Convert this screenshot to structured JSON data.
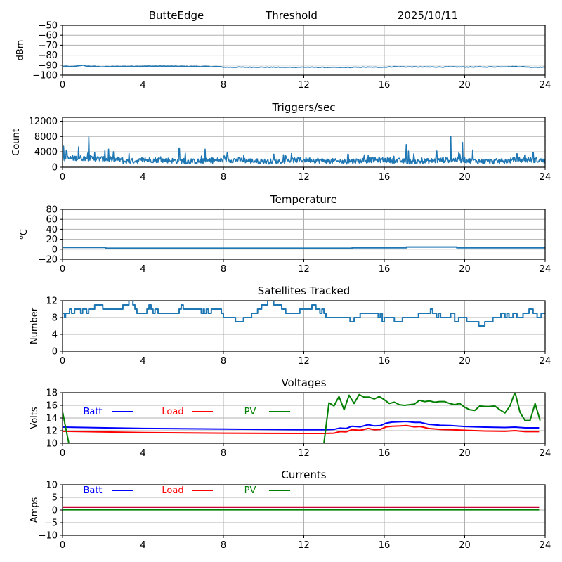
{
  "figure": {
    "header": {
      "station": "ButteEdge",
      "panel": "Threshold",
      "date": "2025/10/11"
    }
  },
  "chart_data": [
    {
      "id": "threshold",
      "type": "line",
      "title": "",
      "ylabel": "dBm",
      "xlabel": "",
      "xlim": [
        0,
        24
      ],
      "ylim": [
        -100,
        -50
      ],
      "xticks": [
        "0",
        "4",
        "8",
        "12",
        "16",
        "20",
        "24"
      ],
      "yticks": [
        "-50",
        "-60",
        "-70",
        "-80",
        "-90",
        "-100"
      ],
      "ytick_values": [
        -50,
        -60,
        -70,
        -80,
        -90,
        -100
      ],
      "grid": true,
      "series": [
        {
          "name": "Threshold",
          "color": "#1f77b4",
          "x": [
            0,
            0.5,
            1.0,
            1.1,
            1.5,
            2,
            3,
            4,
            5,
            6,
            7,
            7.8,
            8,
            9,
            10,
            11,
            12,
            13,
            14,
            15,
            16,
            16.5,
            17,
            18,
            19,
            20,
            21,
            22,
            22.5,
            23,
            23.3,
            24
          ],
          "y": [
            -91,
            -91.5,
            -90,
            -90.8,
            -91.2,
            -91.5,
            -91.2,
            -91,
            -91,
            -91.2,
            -91.3,
            -91.5,
            -92,
            -92,
            -92,
            -92.2,
            -92,
            -92.2,
            -92.3,
            -92,
            -92,
            -91.5,
            -91.7,
            -91.8,
            -91.8,
            -91.8,
            -91.8,
            -91.5,
            -91.4,
            -91.6,
            -92,
            -92
          ]
        }
      ]
    },
    {
      "id": "triggers",
      "type": "line",
      "title": "Triggers/sec",
      "ylabel": "Count",
      "xlabel": "",
      "xlim": [
        0,
        24
      ],
      "ylim": [
        0,
        13000
      ],
      "xticks": [
        "0",
        "4",
        "8",
        "12",
        "16",
        "20",
        "24"
      ],
      "yticks": [
        "0",
        "4000",
        "8000",
        "12000"
      ],
      "ytick_values": [
        0,
        4000,
        8000,
        12000
      ],
      "grid": true,
      "series": [
        {
          "name": "Triggers",
          "color": "#1f77b4",
          "baseline": 1700,
          "noise": 700,
          "spikes": [
            {
              "x": 0.05,
              "y": 5500
            },
            {
              "x": 0.2,
              "y": 4300
            },
            {
              "x": 0.8,
              "y": 5300
            },
            {
              "x": 1.3,
              "y": 7900
            },
            {
              "x": 1.6,
              "y": 3800
            },
            {
              "x": 2.1,
              "y": 4300
            },
            {
              "x": 2.3,
              "y": 4700
            },
            {
              "x": 3.3,
              "y": 3600
            },
            {
              "x": 5.8,
              "y": 5000
            },
            {
              "x": 6.1,
              "y": 3600
            },
            {
              "x": 7.1,
              "y": 4700
            },
            {
              "x": 8.2,
              "y": 3700
            },
            {
              "x": 10.5,
              "y": 3400
            },
            {
              "x": 14.2,
              "y": 3400
            },
            {
              "x": 15.2,
              "y": 3100
            },
            {
              "x": 17.1,
              "y": 5900
            },
            {
              "x": 17.2,
              "y": 4200
            },
            {
              "x": 18.6,
              "y": 4200
            },
            {
              "x": 19.3,
              "y": 8100
            },
            {
              "x": 19.7,
              "y": 3900
            },
            {
              "x": 19.9,
              "y": 6500
            },
            {
              "x": 20.4,
              "y": 4500
            },
            {
              "x": 22.6,
              "y": 3500
            },
            {
              "x": 23.0,
              "y": 3200
            },
            {
              "x": 23.4,
              "y": 3800
            }
          ]
        }
      ]
    },
    {
      "id": "temperature",
      "type": "line",
      "title": "Temperature",
      "ylabel": "°C",
      "xlabel": "",
      "xlim": [
        0,
        24
      ],
      "ylim": [
        -20,
        80
      ],
      "xticks": [
        "0",
        "4",
        "8",
        "12",
        "16",
        "20",
        "24"
      ],
      "yticks": [
        "-20",
        "0",
        "20",
        "40",
        "60",
        "80"
      ],
      "ytick_values": [
        -20,
        0,
        20,
        40,
        60,
        80
      ],
      "grid": true,
      "series": [
        {
          "name": "Temperature",
          "color": "#1f77b4",
          "step": true,
          "x": [
            0,
            2.15,
            2.15,
            14.4,
            14.4,
            17.1,
            17.1,
            19.6,
            19.6,
            24
          ],
          "y": [
            3.5,
            3.5,
            2,
            2,
            3,
            3,
            4.5,
            4.5,
            3,
            3
          ]
        }
      ]
    },
    {
      "id": "satellites",
      "type": "line",
      "title": "Satellites Tracked",
      "ylabel": "Number",
      "xlabel": "",
      "xlim": [
        0,
        24
      ],
      "ylim": [
        0,
        12
      ],
      "xticks": [
        "0",
        "4",
        "8",
        "12",
        "16",
        "20",
        "24"
      ],
      "yticks": [
        "0",
        "4",
        "8",
        "12"
      ],
      "ytick_values": [
        0,
        4,
        8,
        12
      ],
      "grid": true,
      "series": [
        {
          "name": "Satellites",
          "color": "#1f77b4",
          "step": true,
          "x": [
            0,
            0.1,
            0.15,
            0.3,
            0.35,
            0.45,
            0.6,
            0.9,
            1.0,
            1.2,
            1.3,
            1.45,
            1.6,
            1.8,
            2.0,
            2.3,
            3.0,
            3.3,
            3.4,
            3.5,
            3.6,
            3.7,
            4.0,
            4.2,
            4.3,
            4.4,
            4.5,
            4.6,
            4.75,
            5.0,
            5.8,
            5.9,
            6.0,
            6.1,
            6.3,
            6.9,
            7.0,
            7.05,
            7.15,
            7.25,
            7.4,
            7.9,
            8.0,
            8.6,
            9.0,
            9.4,
            9.7,
            9.9,
            10.2,
            10.5,
            10.9,
            11.1,
            11.6,
            11.8,
            12.2,
            12.4,
            12.6,
            12.8,
            12.9,
            13.0,
            13.1,
            13.2,
            13.3,
            14.3,
            14.5,
            14.8,
            15.4,
            15.7,
            15.8,
            15.9,
            16.0,
            16.1,
            16.5,
            16.9,
            17.3,
            17.7,
            18.3,
            18.4,
            18.5,
            18.6,
            18.7,
            18.8,
            19.0,
            19.3,
            19.5,
            19.6,
            19.7,
            20.1,
            20.4,
            20.7,
            21.0,
            21.4,
            21.8,
            22.0,
            22.05,
            22.1,
            22.2,
            22.4,
            22.6,
            22.9,
            23.2,
            23.4,
            23.6,
            23.8,
            24
          ],
          "y": [
            9,
            8,
            9,
            9,
            10,
            9,
            10,
            9,
            10,
            9,
            10,
            10,
            11,
            11,
            10,
            10,
            11,
            12,
            12,
            11,
            10,
            9,
            9,
            10,
            11,
            10,
            9,
            10,
            9,
            9,
            10,
            11,
            10,
            10,
            10,
            9,
            10,
            9,
            10,
            9,
            10,
            9,
            8,
            7,
            8,
            9,
            10,
            11,
            12,
            11,
            10,
            9,
            9,
            10,
            10,
            11,
            10,
            9,
            10,
            9,
            8,
            8,
            8,
            7,
            8,
            9,
            9,
            8,
            9,
            7,
            8,
            8,
            7,
            8,
            8,
            9,
            10,
            9,
            9,
            8,
            9,
            8,
            8,
            9,
            7,
            7,
            8,
            7,
            7,
            6,
            7,
            8,
            9,
            8,
            8,
            9,
            8,
            9,
            8,
            9,
            10,
            9,
            8,
            9,
            9
          ]
        }
      ]
    },
    {
      "id": "voltages",
      "type": "line",
      "title": "Voltages",
      "ylabel": "Volts",
      "xlabel": "",
      "xlim": [
        0,
        24
      ],
      "ylim": [
        10,
        18
      ],
      "xticks": [
        "0",
        "4",
        "8",
        "12",
        "16",
        "20",
        "24"
      ],
      "yticks": [
        "10",
        "12",
        "14",
        "16",
        "18"
      ],
      "ytick_values": [
        10,
        12,
        14,
        16,
        18
      ],
      "grid": true,
      "legend": [
        "Batt",
        "Load",
        "PV"
      ],
      "series": [
        {
          "name": "Batt",
          "color": "#0000ff",
          "x": [
            0,
            4,
            8,
            12,
            13,
            13.5,
            13.8,
            14.1,
            14.4,
            14.8,
            15.2,
            15.5,
            15.8,
            16.1,
            16.4,
            16.8,
            17.1,
            17.5,
            17.8,
            18.2,
            18.8,
            19.3,
            20,
            21,
            22,
            22.5,
            23,
            23.7
          ],
          "y": [
            12.55,
            12.35,
            12.25,
            12.15,
            12.15,
            12.2,
            12.4,
            12.35,
            12.7,
            12.6,
            12.95,
            12.75,
            12.8,
            13.2,
            13.35,
            13.4,
            13.45,
            13.3,
            13.3,
            13.0,
            12.85,
            12.8,
            12.65,
            12.55,
            12.5,
            12.55,
            12.45,
            12.45
          ]
        },
        {
          "name": "Load",
          "color": "#ff0000",
          "x": [
            0,
            4,
            8,
            12,
            13,
            13.5,
            13.8,
            14.1,
            14.4,
            14.8,
            15.2,
            15.5,
            15.8,
            16.1,
            16.4,
            16.8,
            17.1,
            17.5,
            17.8,
            18.2,
            18.8,
            19.3,
            20,
            21,
            22,
            22.5,
            23,
            23.7
          ],
          "y": [
            11.9,
            11.7,
            11.6,
            11.55,
            11.55,
            11.6,
            11.85,
            11.8,
            12.15,
            12.05,
            12.35,
            12.15,
            12.2,
            12.6,
            12.7,
            12.75,
            12.8,
            12.6,
            12.65,
            12.35,
            12.2,
            12.15,
            12.05,
            11.95,
            11.9,
            12.0,
            11.85,
            11.85
          ]
        },
        {
          "name": "PV",
          "color": "#008000",
          "x": [
            0,
            0.3,
            0.35,
            12.95,
            13.0,
            13.25,
            13.5,
            13.75,
            14.0,
            14.25,
            14.5,
            14.75,
            15.0,
            15.25,
            15.5,
            15.75,
            16.0,
            16.25,
            16.5,
            16.75,
            17.0,
            17.25,
            17.5,
            17.75,
            18.0,
            18.25,
            18.5,
            18.75,
            19.0,
            19.25,
            19.5,
            19.75,
            20.0,
            20.25,
            20.5,
            20.75,
            21.0,
            21.25,
            21.5,
            21.75,
            22.0,
            22.25,
            22.5,
            22.75,
            23.0,
            23.25,
            23.5,
            23.75
          ],
          "y": [
            15.0,
            10.2,
            9.5,
            9.5,
            10.0,
            16.4,
            15.9,
            17.4,
            15.3,
            17.6,
            16.3,
            17.7,
            17.3,
            17.3,
            17.0,
            17.4,
            16.9,
            16.3,
            16.5,
            16.1,
            16.0,
            16.1,
            16.2,
            16.8,
            16.6,
            16.7,
            16.5,
            16.6,
            16.6,
            16.3,
            16.1,
            16.3,
            15.7,
            15.3,
            15.2,
            15.9,
            15.8,
            15.8,
            15.9,
            15.3,
            14.8,
            15.9,
            18.1,
            14.9,
            13.6,
            13.6,
            16.3,
            13.6
          ]
        }
      ]
    },
    {
      "id": "currents",
      "type": "line",
      "title": "Currents",
      "ylabel": "Amps",
      "xlabel": "",
      "xlim": [
        0,
        24
      ],
      "ylim": [
        -10,
        10
      ],
      "xticks": [
        "0",
        "4",
        "8",
        "12",
        "16",
        "20",
        "24"
      ],
      "yticks": [
        "-10",
        "-5",
        "0",
        "5",
        "10"
      ],
      "ytick_values": [
        -10,
        -5,
        0,
        5,
        10
      ],
      "grid": true,
      "legend": [
        "Batt",
        "Load",
        "PV"
      ],
      "series": [
        {
          "name": "Batt",
          "color": "#0000ff",
          "x": [
            0,
            23.7
          ],
          "y": [
            1.1,
            1.1
          ]
        },
        {
          "name": "Load",
          "color": "#ff0000",
          "x": [
            0,
            23.7
          ],
          "y": [
            1.2,
            1.2
          ]
        },
        {
          "name": "PV",
          "color": "#008000",
          "x": [
            0,
            23.7
          ],
          "y": [
            0.1,
            0.1
          ]
        }
      ]
    }
  ]
}
